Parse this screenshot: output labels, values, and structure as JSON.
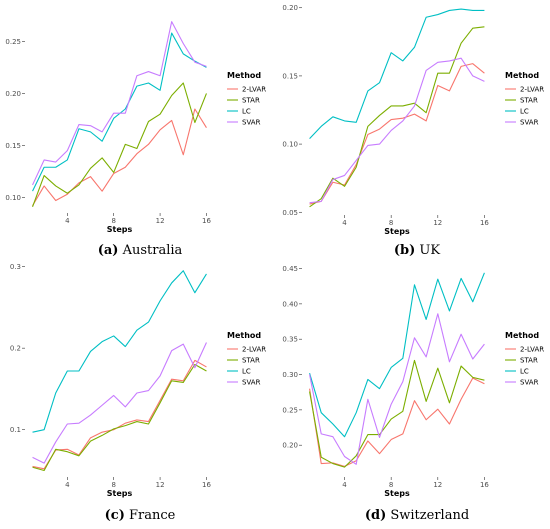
{
  "chart_data": [
    {
      "type": "line",
      "caption_letter": "(a)",
      "caption_text": "Australia",
      "xlabel": "Steps",
      "x": [
        1,
        2,
        3,
        4,
        5,
        6,
        7,
        8,
        9,
        10,
        11,
        12,
        13,
        14,
        15,
        16
      ],
      "xticks": [
        4,
        8,
        12,
        16
      ],
      "ylim": [
        0.085,
        0.285
      ],
      "yticks": [
        0.1,
        0.15,
        0.2,
        0.25
      ],
      "ytick_labels": [
        "0.10",
        "0.15",
        "0.20",
        "0.25"
      ],
      "legend_title": "Method",
      "series": [
        {
          "name": "2-LVAR",
          "color": "#f8766d",
          "values": [
            0.092,
            0.111,
            0.097,
            0.103,
            0.114,
            0.12,
            0.106,
            0.123,
            0.129,
            0.142,
            0.151,
            0.165,
            0.174,
            0.141,
            0.185,
            0.167
          ]
        },
        {
          "name": "STAR",
          "color": "#7cae00",
          "values": [
            0.091,
            0.121,
            0.111,
            0.104,
            0.112,
            0.128,
            0.138,
            0.124,
            0.151,
            0.147,
            0.173,
            0.18,
            0.198,
            0.21,
            0.172,
            0.2
          ]
        },
        {
          "name": "LC",
          "color": "#00bfc4",
          "values": [
            0.106,
            0.129,
            0.129,
            0.136,
            0.166,
            0.163,
            0.154,
            0.176,
            0.185,
            0.207,
            0.21,
            0.203,
            0.258,
            0.238,
            0.231,
            0.225
          ]
        },
        {
          "name": "SVAR",
          "color": "#c77cff",
          "values": [
            0.112,
            0.136,
            0.134,
            0.145,
            0.17,
            0.169,
            0.163,
            0.181,
            0.181,
            0.217,
            0.221,
            0.217,
            0.269,
            0.248,
            0.23,
            0.226
          ]
        }
      ]
    },
    {
      "type": "line",
      "caption_letter": "(b)",
      "caption_text": "UK",
      "xlabel": "Steps",
      "x": [
        1,
        2,
        3,
        4,
        5,
        6,
        7,
        8,
        9,
        10,
        11,
        12,
        13,
        14,
        15,
        16
      ],
      "xticks": [
        4,
        8,
        12,
        16
      ],
      "ylim": [
        0.048,
        0.202
      ],
      "yticks": [
        0.05,
        0.1,
        0.15,
        0.2
      ],
      "ytick_labels": [
        "0.05",
        "0.10",
        "0.15",
        "0.20"
      ],
      "legend_title": "Method",
      "series": [
        {
          "name": "2-LVAR",
          "color": "#f8766d",
          "values": [
            0.056,
            0.058,
            0.072,
            0.07,
            0.085,
            0.107,
            0.111,
            0.118,
            0.119,
            0.122,
            0.117,
            0.143,
            0.139,
            0.157,
            0.159,
            0.152
          ]
        },
        {
          "name": "STAR",
          "color": "#7cae00",
          "values": [
            0.054,
            0.06,
            0.075,
            0.069,
            0.083,
            0.113,
            0.121,
            0.128,
            0.128,
            0.13,
            0.123,
            0.152,
            0.152,
            0.174,
            0.185,
            0.186
          ]
        },
        {
          "name": "LC",
          "color": "#00bfc4",
          "values": [
            0.104,
            0.113,
            0.12,
            0.117,
            0.116,
            0.139,
            0.145,
            0.167,
            0.161,
            0.171,
            0.193,
            0.195,
            0.198,
            0.199,
            0.198,
            0.198
          ]
        },
        {
          "name": "SVAR",
          "color": "#c77cff",
          "values": [
            0.057,
            0.058,
            0.074,
            0.077,
            0.088,
            0.099,
            0.1,
            0.11,
            0.117,
            0.128,
            0.154,
            0.16,
            0.161,
            0.163,
            0.15,
            0.146
          ]
        }
      ]
    },
    {
      "type": "line",
      "caption_letter": "(c)",
      "caption_text": "France",
      "xlabel": "Steps",
      "x": [
        1,
        2,
        3,
        4,
        5,
        6,
        7,
        8,
        9,
        10,
        11,
        12,
        13,
        14,
        15,
        16
      ],
      "xticks": [
        4,
        8,
        12,
        16
      ],
      "ylim": [
        0.042,
        0.302
      ],
      "yticks": [
        0.1,
        0.2,
        0.3
      ],
      "ytick_labels": [
        "0.1",
        "0.2",
        "0.3"
      ],
      "legend_title": "Method",
      "series": [
        {
          "name": "2-LVAR",
          "color": "#f8766d",
          "values": [
            0.055,
            0.052,
            0.075,
            0.076,
            0.069,
            0.09,
            0.097,
            0.1,
            0.108,
            0.112,
            0.11,
            0.136,
            0.162,
            0.16,
            0.185,
            0.177
          ]
        },
        {
          "name": "STAR",
          "color": "#7cae00",
          "values": [
            0.054,
            0.05,
            0.076,
            0.073,
            0.068,
            0.086,
            0.093,
            0.101,
            0.105,
            0.11,
            0.107,
            0.133,
            0.16,
            0.158,
            0.18,
            0.172
          ]
        },
        {
          "name": "LC",
          "color": "#00bfc4",
          "values": [
            0.097,
            0.1,
            0.145,
            0.172,
            0.172,
            0.196,
            0.208,
            0.215,
            0.202,
            0.222,
            0.232,
            0.258,
            0.28,
            0.295,
            0.268,
            0.291
          ]
        },
        {
          "name": "SVAR",
          "color": "#c77cff",
          "values": [
            0.066,
            0.059,
            0.085,
            0.107,
            0.108,
            0.118,
            0.13,
            0.142,
            0.128,
            0.145,
            0.148,
            0.166,
            0.197,
            0.205,
            0.176,
            0.207
          ]
        }
      ]
    },
    {
      "type": "line",
      "caption_letter": "(d)",
      "caption_text": "Switzerland",
      "xlabel": "Steps",
      "x": [
        1,
        2,
        3,
        4,
        5,
        6,
        7,
        8,
        9,
        10,
        11,
        12,
        13,
        14,
        15,
        16
      ],
      "xticks": [
        4,
        8,
        12,
        16
      ],
      "ylim": [
        0.155,
        0.455
      ],
      "yticks": [
        0.2,
        0.25,
        0.3,
        0.35,
        0.4,
        0.45
      ],
      "ytick_labels": [
        "0.20",
        "0.25",
        "0.30",
        "0.35",
        "0.40",
        "0.45"
      ],
      "legend_title": "Method",
      "series": [
        {
          "name": "2-LVAR",
          "color": "#f8766d",
          "values": [
            0.28,
            0.174,
            0.175,
            0.17,
            0.178,
            0.206,
            0.188,
            0.208,
            0.216,
            0.263,
            0.236,
            0.251,
            0.23,
            0.265,
            0.295,
            0.287
          ]
        },
        {
          "name": "STAR",
          "color": "#7cae00",
          "values": [
            0.276,
            0.183,
            0.174,
            0.169,
            0.185,
            0.215,
            0.215,
            0.237,
            0.248,
            0.32,
            0.262,
            0.309,
            0.26,
            0.312,
            0.296,
            0.292
          ]
        },
        {
          "name": "LC",
          "color": "#00bfc4",
          "values": [
            0.302,
            0.246,
            0.23,
            0.212,
            0.246,
            0.293,
            0.28,
            0.31,
            0.323,
            0.427,
            0.378,
            0.435,
            0.39,
            0.436,
            0.403,
            0.444
          ]
        },
        {
          "name": "SVAR",
          "color": "#c77cff",
          "values": [
            0.3,
            0.216,
            0.212,
            0.184,
            0.173,
            0.265,
            0.211,
            0.258,
            0.29,
            0.352,
            0.325,
            0.386,
            0.318,
            0.357,
            0.322,
            0.343
          ]
        }
      ]
    }
  ]
}
